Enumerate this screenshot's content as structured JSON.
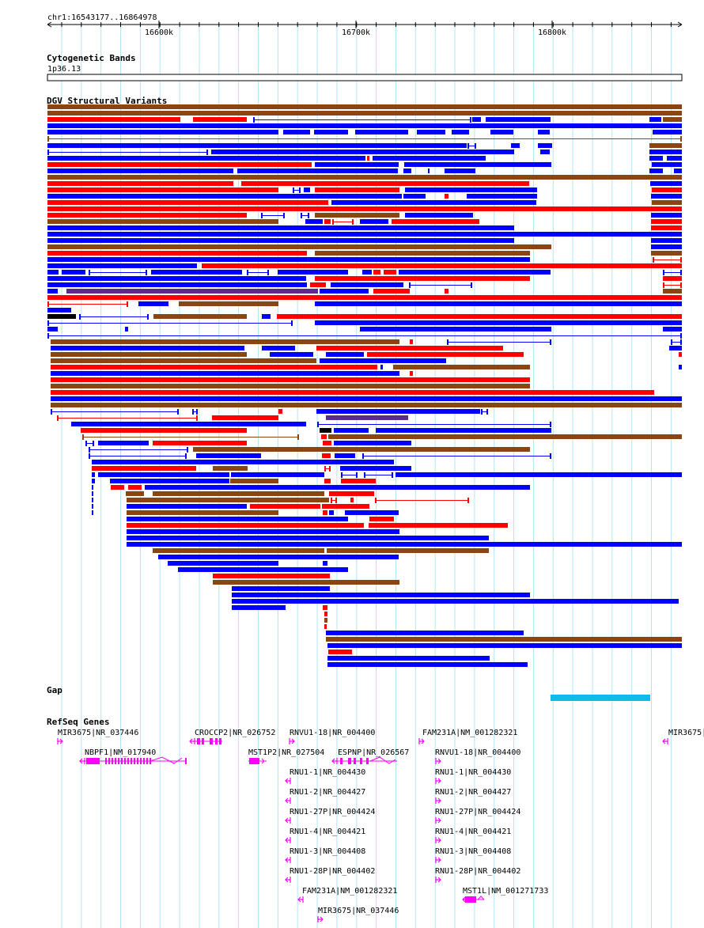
{
  "region": "chr1:16543177..16864978",
  "ruler": {
    "ticks": [
      "16600k",
      "16700k",
      "16800k"
    ]
  },
  "tracks": {
    "cytoband": {
      "title": "Cytogenetic Bands",
      "band": "1p36.13"
    },
    "dgv": {
      "title": "DGV Structural Variants"
    },
    "gap": {
      "title": "Gap"
    },
    "refseq": {
      "title": "RefSeq Genes"
    }
  },
  "colors": {
    "loss": "#0000ff",
    "gain": "#ff0000",
    "gain_loss": "#8b4513",
    "inversion": "#5b2b8f",
    "complex": "#000000",
    "gap": "#0bbbe8",
    "gene": "#ff00ff",
    "grid": "#b3e5f5"
  },
  "genes": [
    "MIR3675|NR_037446",
    "CROCCP2|NR_026752",
    "RNVU1-18|NR_004400",
    "FAM231A|NM_001282321",
    "MIR3675|",
    "NBPF1|NM_017940",
    "MST1P2|NR_027504",
    "ESPNP|NR_026567",
    "RNVU1-18|NR_004400",
    "RNU1-1|NR_004430",
    "RNU1-1|NR_004430",
    "RNU1-2|NR_004427",
    "RNU1-2|NR_004427",
    "RNU1-27P|NR_004424",
    "RNU1-27P|NR_004424",
    "RNU1-4|NR_004421",
    "RNU1-4|NR_004421",
    "RNU1-3|NR_004408",
    "RNU1-3|NR_004408",
    "RNU1-28P|NR_004402",
    "RNU1-28P|NR_004402",
    "FAM231A|NM_001282321",
    "MST1L|NM_001271733",
    "MIR3675|NR_037446"
  ]
}
